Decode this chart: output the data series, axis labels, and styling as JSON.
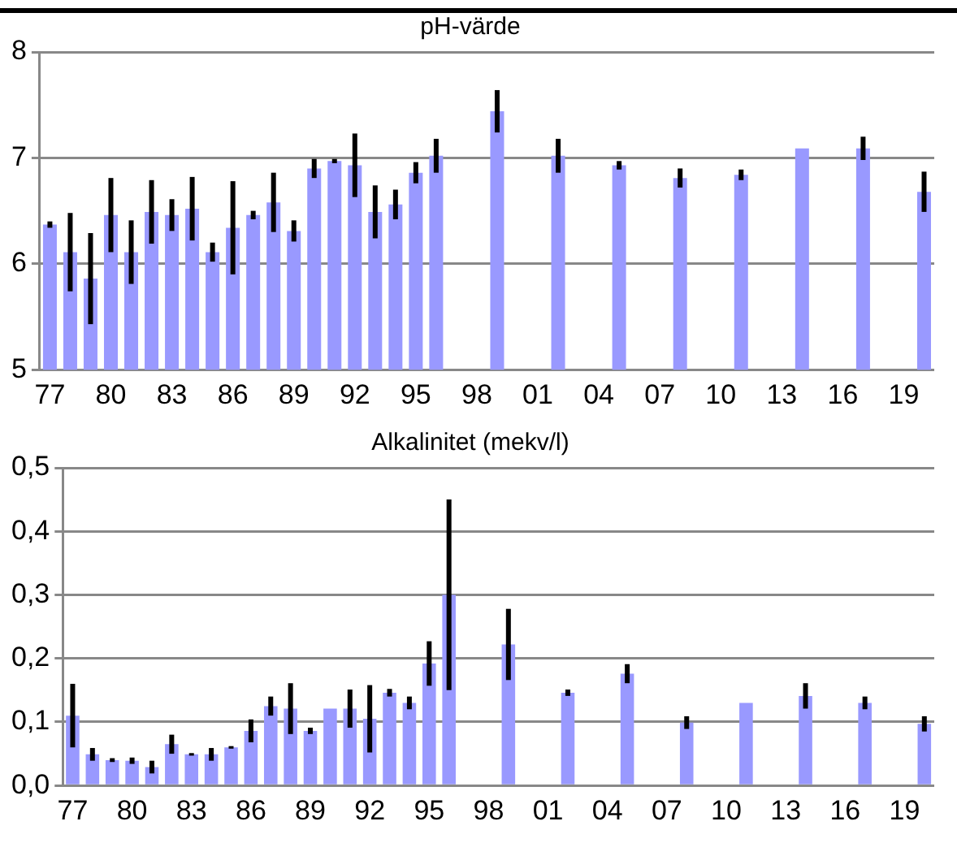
{
  "chart_data": [
    {
      "type": "bar",
      "title": "pH-värde",
      "categories": [
        "77",
        null,
        null,
        "80",
        null,
        null,
        "83",
        null,
        null,
        "86",
        null,
        null,
        "89",
        null,
        null,
        "92",
        null,
        null,
        "95",
        null,
        null,
        "98",
        null,
        null,
        "01",
        null,
        null,
        "04",
        null,
        null,
        "07",
        null,
        null,
        "10",
        null,
        null,
        "13",
        null,
        null,
        "16",
        null,
        null,
        "19",
        null
      ],
      "color": "#9999ff",
      "values": [
        6.37,
        6.11,
        5.86,
        6.46,
        6.11,
        6.49,
        6.46,
        6.52,
        6.11,
        6.34,
        6.46,
        6.58,
        6.31,
        6.9,
        6.97,
        6.93,
        6.49,
        6.56,
        6.86,
        7.02,
        null,
        null,
        7.44,
        null,
        null,
        7.02,
        null,
        null,
        6.93,
        null,
        null,
        6.81,
        null,
        null,
        6.84,
        null,
        null,
        7.09,
        null,
        null,
        7.09,
        null,
        null,
        6.68
      ],
      "errors": [
        0.03,
        0.37,
        0.43,
        0.35,
        0.3,
        0.3,
        0.15,
        0.3,
        0.09,
        0.44,
        0.04,
        0.28,
        0.1,
        0.09,
        0.02,
        0.3,
        0.25,
        0.14,
        0.1,
        0.16,
        null,
        null,
        0.2,
        null,
        null,
        0.16,
        null,
        null,
        0.04,
        null,
        null,
        0.09,
        null,
        null,
        0.05,
        null,
        null,
        null,
        null,
        null,
        0.11,
        null,
        null,
        0.19
      ],
      "ylim": [
        5,
        8
      ],
      "yticks": [
        5,
        6,
        7,
        8
      ],
      "grid": "y"
    },
    {
      "type": "bar",
      "title": "Alkalinitet (mekv/l)",
      "categories": [
        "77",
        null,
        null,
        "80",
        null,
        null,
        "83",
        null,
        null,
        "86",
        null,
        null,
        "89",
        null,
        null,
        "92",
        null,
        null,
        "95",
        null,
        null,
        "98",
        null,
        null,
        "01",
        null,
        null,
        "04",
        null,
        null,
        "07",
        null,
        null,
        "10",
        null,
        null,
        "13",
        null,
        null,
        "16",
        null,
        null,
        "19",
        null
      ],
      "color": "#9999ff",
      "values": [
        0.11,
        0.049,
        0.04,
        0.039,
        0.029,
        0.065,
        0.049,
        0.049,
        0.06,
        0.086,
        0.125,
        0.121,
        0.086,
        0.121,
        0.121,
        0.105,
        0.146,
        0.13,
        0.192,
        0.3,
        null,
        null,
        0.222,
        null,
        null,
        0.146,
        null,
        null,
        0.176,
        null,
        null,
        0.099,
        null,
        null,
        0.13,
        null,
        null,
        0.141,
        null,
        null,
        0.13,
        null,
        null,
        0.097
      ],
      "errors": [
        0.05,
        0.01,
        0.003,
        0.005,
        0.01,
        0.015,
        0.002,
        0.01,
        0.002,
        0.018,
        0.015,
        0.04,
        0.005,
        null,
        0.03,
        0.053,
        0.006,
        0.01,
        0.035,
        0.15,
        null,
        null,
        0.056,
        null,
        null,
        0.005,
        null,
        null,
        0.015,
        null,
        null,
        0.01,
        null,
        null,
        null,
        null,
        null,
        0.02,
        null,
        null,
        0.01,
        null,
        null,
        0.012
      ],
      "ylim": [
        0,
        0.5
      ],
      "yticks": [
        {
          "value": 0,
          "label": "0,0"
        },
        {
          "value": 0.1,
          "label": "0,1"
        },
        {
          "value": 0.2,
          "label": "0,2"
        },
        {
          "value": 0.3,
          "label": "0,3"
        },
        {
          "value": 0.4,
          "label": "0,4"
        },
        {
          "value": 0.5,
          "label": "0,5"
        }
      ],
      "grid": "y"
    }
  ]
}
